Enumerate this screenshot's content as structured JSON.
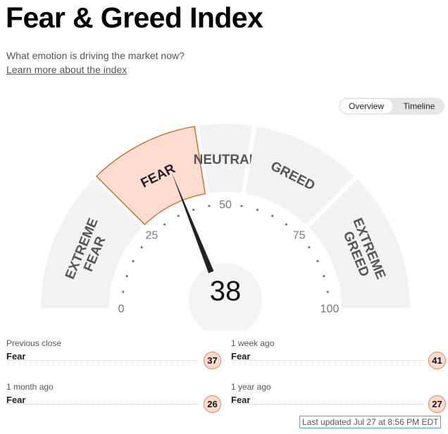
{
  "header": {
    "title": "Fear & Greed Index",
    "subtitle": "What emotion is driving the market now?",
    "learn_more": "Learn more about the index"
  },
  "view_toggle": {
    "overview": "Overview",
    "timeline": "Timeline",
    "selected": "Overview"
  },
  "gauge": {
    "value": 38,
    "min": 0,
    "max": 100,
    "ticks": [
      "0",
      "25",
      "50",
      "75",
      "100"
    ],
    "segments": [
      {
        "label_lines": [
          "EXTREME",
          "FEAR"
        ],
        "from": 0,
        "to": 25,
        "active": false
      },
      {
        "label_lines": [
          "FEAR"
        ],
        "from": 25,
        "to": 45,
        "active": true
      },
      {
        "label_lines": [
          "NEUTRAL"
        ],
        "from": 45,
        "to": 55,
        "active": false
      },
      {
        "label_lines": [
          "GREED"
        ],
        "from": 55,
        "to": 75,
        "active": false
      },
      {
        "label_lines": [
          "EXTREME",
          "GREED"
        ],
        "from": 75,
        "to": 100,
        "active": false
      }
    ],
    "colors": {
      "band": "#f2f2f2",
      "active_fill": "#ffdcd0",
      "active_stroke": "#c75a12",
      "needle": "#222222",
      "label": "#555555"
    }
  },
  "history": [
    {
      "label": "Previous close",
      "rating": "Fear",
      "value": "37"
    },
    {
      "label": "1 week ago",
      "rating": "Fear",
      "value": "41"
    },
    {
      "label": "1 month ago",
      "rating": "Fear",
      "value": "26"
    },
    {
      "label": "1 year ago",
      "rating": "Fear",
      "value": "27"
    }
  ],
  "last_updated": "Last updated Jul 27 at 8:56 PM EDT"
}
